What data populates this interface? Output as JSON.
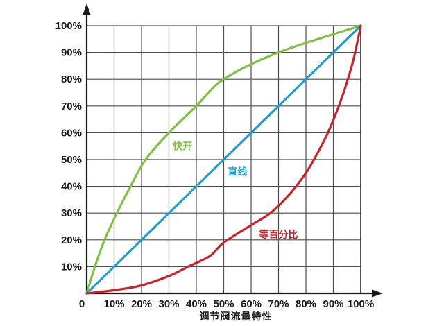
{
  "chart_data": {
    "type": "line",
    "caption": "调节阀流量特性",
    "xlabel": "调节阀流量特性",
    "ylabel": "",
    "x_range": [
      0,
      100
    ],
    "y_range": [
      0,
      100
    ],
    "grid": true,
    "x_ticks": [
      "0",
      "10%",
      "20%",
      "30%",
      "40%",
      "50%",
      "60%",
      "70%",
      "80%",
      "90%",
      "100%"
    ],
    "y_ticks": [
      "10%",
      "20%",
      "30%",
      "40%",
      "50%",
      "60%",
      "70%",
      "80%",
      "90%",
      "100%"
    ],
    "colors": {
      "grid": "#4f4f4f",
      "axis": "#1a1a1a",
      "text": "#1a1a1a",
      "quick_open": "#7FC241",
      "linear": "#1E9CD7",
      "equal_percentage": "#CE2127"
    },
    "series": [
      {
        "id": "quick_open",
        "label": "快开",
        "color": "#7FC241",
        "label_pos": [
          35,
          55
        ],
        "points": [
          [
            0,
            0
          ],
          [
            3,
            10
          ],
          [
            6.5,
            20
          ],
          [
            11,
            30
          ],
          [
            16,
            40
          ],
          [
            21.5,
            50
          ],
          [
            30,
            60
          ],
          [
            40,
            70
          ],
          [
            50,
            80
          ],
          [
            70,
            90
          ],
          [
            100,
            100
          ]
        ]
      },
      {
        "id": "linear",
        "label": "直线",
        "color": "#1E9CD7",
        "label_pos": [
          55,
          45.5
        ],
        "points": [
          [
            0,
            0
          ],
          [
            25,
            25
          ],
          [
            50,
            50
          ],
          [
            75,
            75
          ],
          [
            100,
            100
          ]
        ]
      },
      {
        "id": "equal_percentage",
        "label": "等百分比",
        "color": "#CE2127",
        "label_pos": [
          70,
          22
        ],
        "points": [
          [
            0,
            0
          ],
          [
            10,
            1.2
          ],
          [
            20,
            3
          ],
          [
            30,
            6.5
          ],
          [
            37,
            10
          ],
          [
            45,
            14
          ],
          [
            50,
            19
          ],
          [
            60,
            25.5
          ],
          [
            67,
            30
          ],
          [
            74,
            37
          ],
          [
            80,
            45
          ],
          [
            84,
            52
          ],
          [
            88,
            60
          ],
          [
            92,
            70
          ],
          [
            95,
            79
          ],
          [
            97.5,
            88
          ],
          [
            100,
            100
          ]
        ]
      }
    ]
  }
}
